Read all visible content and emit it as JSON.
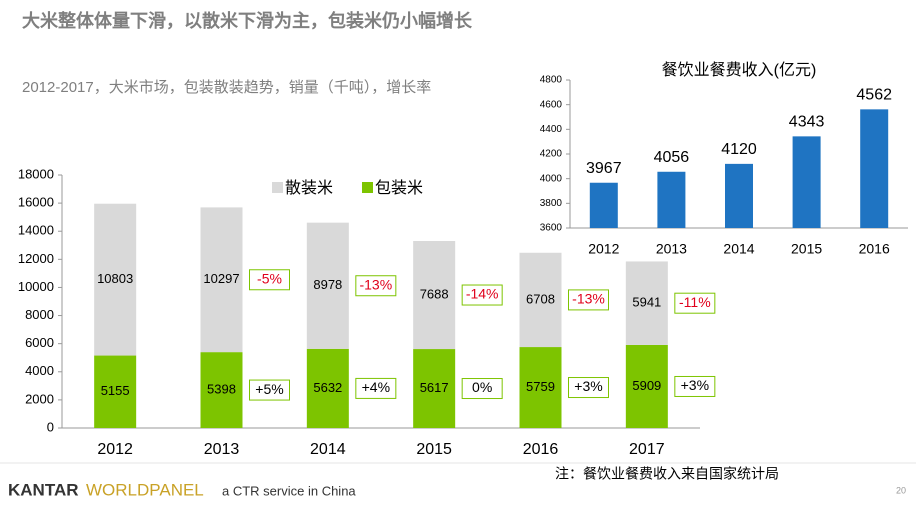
{
  "slide": {
    "title": "大米整体体量下滑，以散米下滑为主，包装米仍小幅增长",
    "subtitle": "2012-2017，大米市场，包装散装趋势，销量（千吨），增长率",
    "footnote": "注：餐饮业餐费收入来自国家统计局",
    "brand": "KANTAR",
    "brand_product": "WORLDPANEL",
    "tagline": "a CTR service in China",
    "page": 20
  },
  "chart_data": [
    {
      "type": "stacked_bar",
      "categories": [
        "2012",
        "2013",
        "2014",
        "2015",
        "2016",
        "2017"
      ],
      "series": [
        {
          "name": "包装米",
          "color": "#7dc400",
          "values": [
            5155,
            5398,
            5632,
            5617,
            5759,
            5909
          ],
          "change_labels": [
            null,
            "+5%",
            "+4%",
            "0%",
            "+3%",
            "+3%"
          ],
          "change_label_color": "#000000"
        },
        {
          "name": "散装米",
          "color": "#d9d9d9",
          "values": [
            10803,
            10297,
            8978,
            7688,
            6708,
            5941
          ],
          "change_labels": [
            null,
            "-5%",
            "-13%",
            "-14%",
            "-13%",
            "-11%"
          ],
          "change_label_color": "#e0001b"
        }
      ],
      "ylim": [
        0,
        18000
      ],
      "yticks": [
        0,
        2000,
        4000,
        6000,
        8000,
        10000,
        12000,
        14000,
        16000,
        18000
      ],
      "legend": "top",
      "grid": false
    },
    {
      "type": "bar",
      "title": "餐饮业餐费收入(亿元)",
      "categories": [
        "2012",
        "2013",
        "2014",
        "2015",
        "2016"
      ],
      "values": [
        3967,
        4056,
        4120,
        4343,
        4562
      ],
      "color": "#1f74c2",
      "ylim": [
        3600,
        4800
      ],
      "yticks": [
        3600,
        3800,
        4000,
        4200,
        4400,
        4600,
        4800
      ],
      "grid": false
    }
  ]
}
